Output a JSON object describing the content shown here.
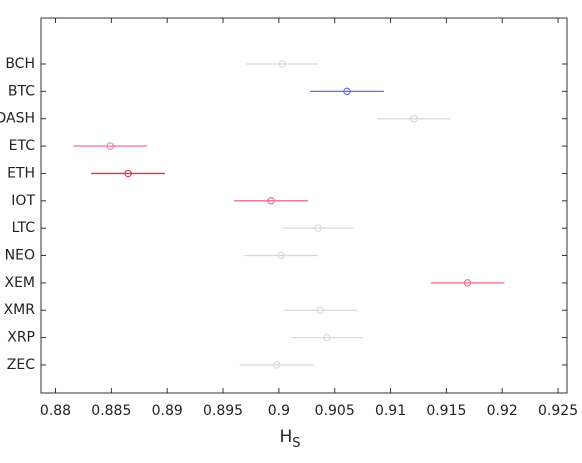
{
  "chart_data": {
    "type": "errorbar",
    "categories": [
      "BCH",
      "BTC",
      "DASH",
      "ETC",
      "ETH",
      "IOT",
      "LTC",
      "NEO",
      "XEM",
      "XMR",
      "XRP",
      "ZEC"
    ],
    "values": [
      0.9003,
      0.9061,
      0.9121,
      0.8849,
      0.8865,
      0.8993,
      0.9035,
      0.9002,
      0.9169,
      0.9037,
      0.9043,
      0.8998
    ],
    "errors": [
      0.0032,
      0.0033,
      0.0033,
      0.0033,
      0.0033,
      0.0033,
      0.0032,
      0.0033,
      0.0033,
      0.0033,
      0.0032,
      0.0033
    ],
    "colors": [
      "#d9d9d9",
      "#6a6ae6",
      "#d9d9d9",
      "#ee7fb0",
      "#e2333b",
      "#ec6a98",
      "#d9d9d9",
      "#d9d9d9",
      "#ee6e7e",
      "#d9d9d9",
      "#d9d9d9",
      "#d9d9d9"
    ],
    "xlabel": "H",
    "xlabel_subscript": "S",
    "xlim": [
      0.8787,
      0.9258
    ],
    "xticks": [
      0.88,
      0.885,
      0.89,
      0.895,
      0.9,
      0.905,
      0.91,
      0.915,
      0.92,
      0.925
    ]
  }
}
